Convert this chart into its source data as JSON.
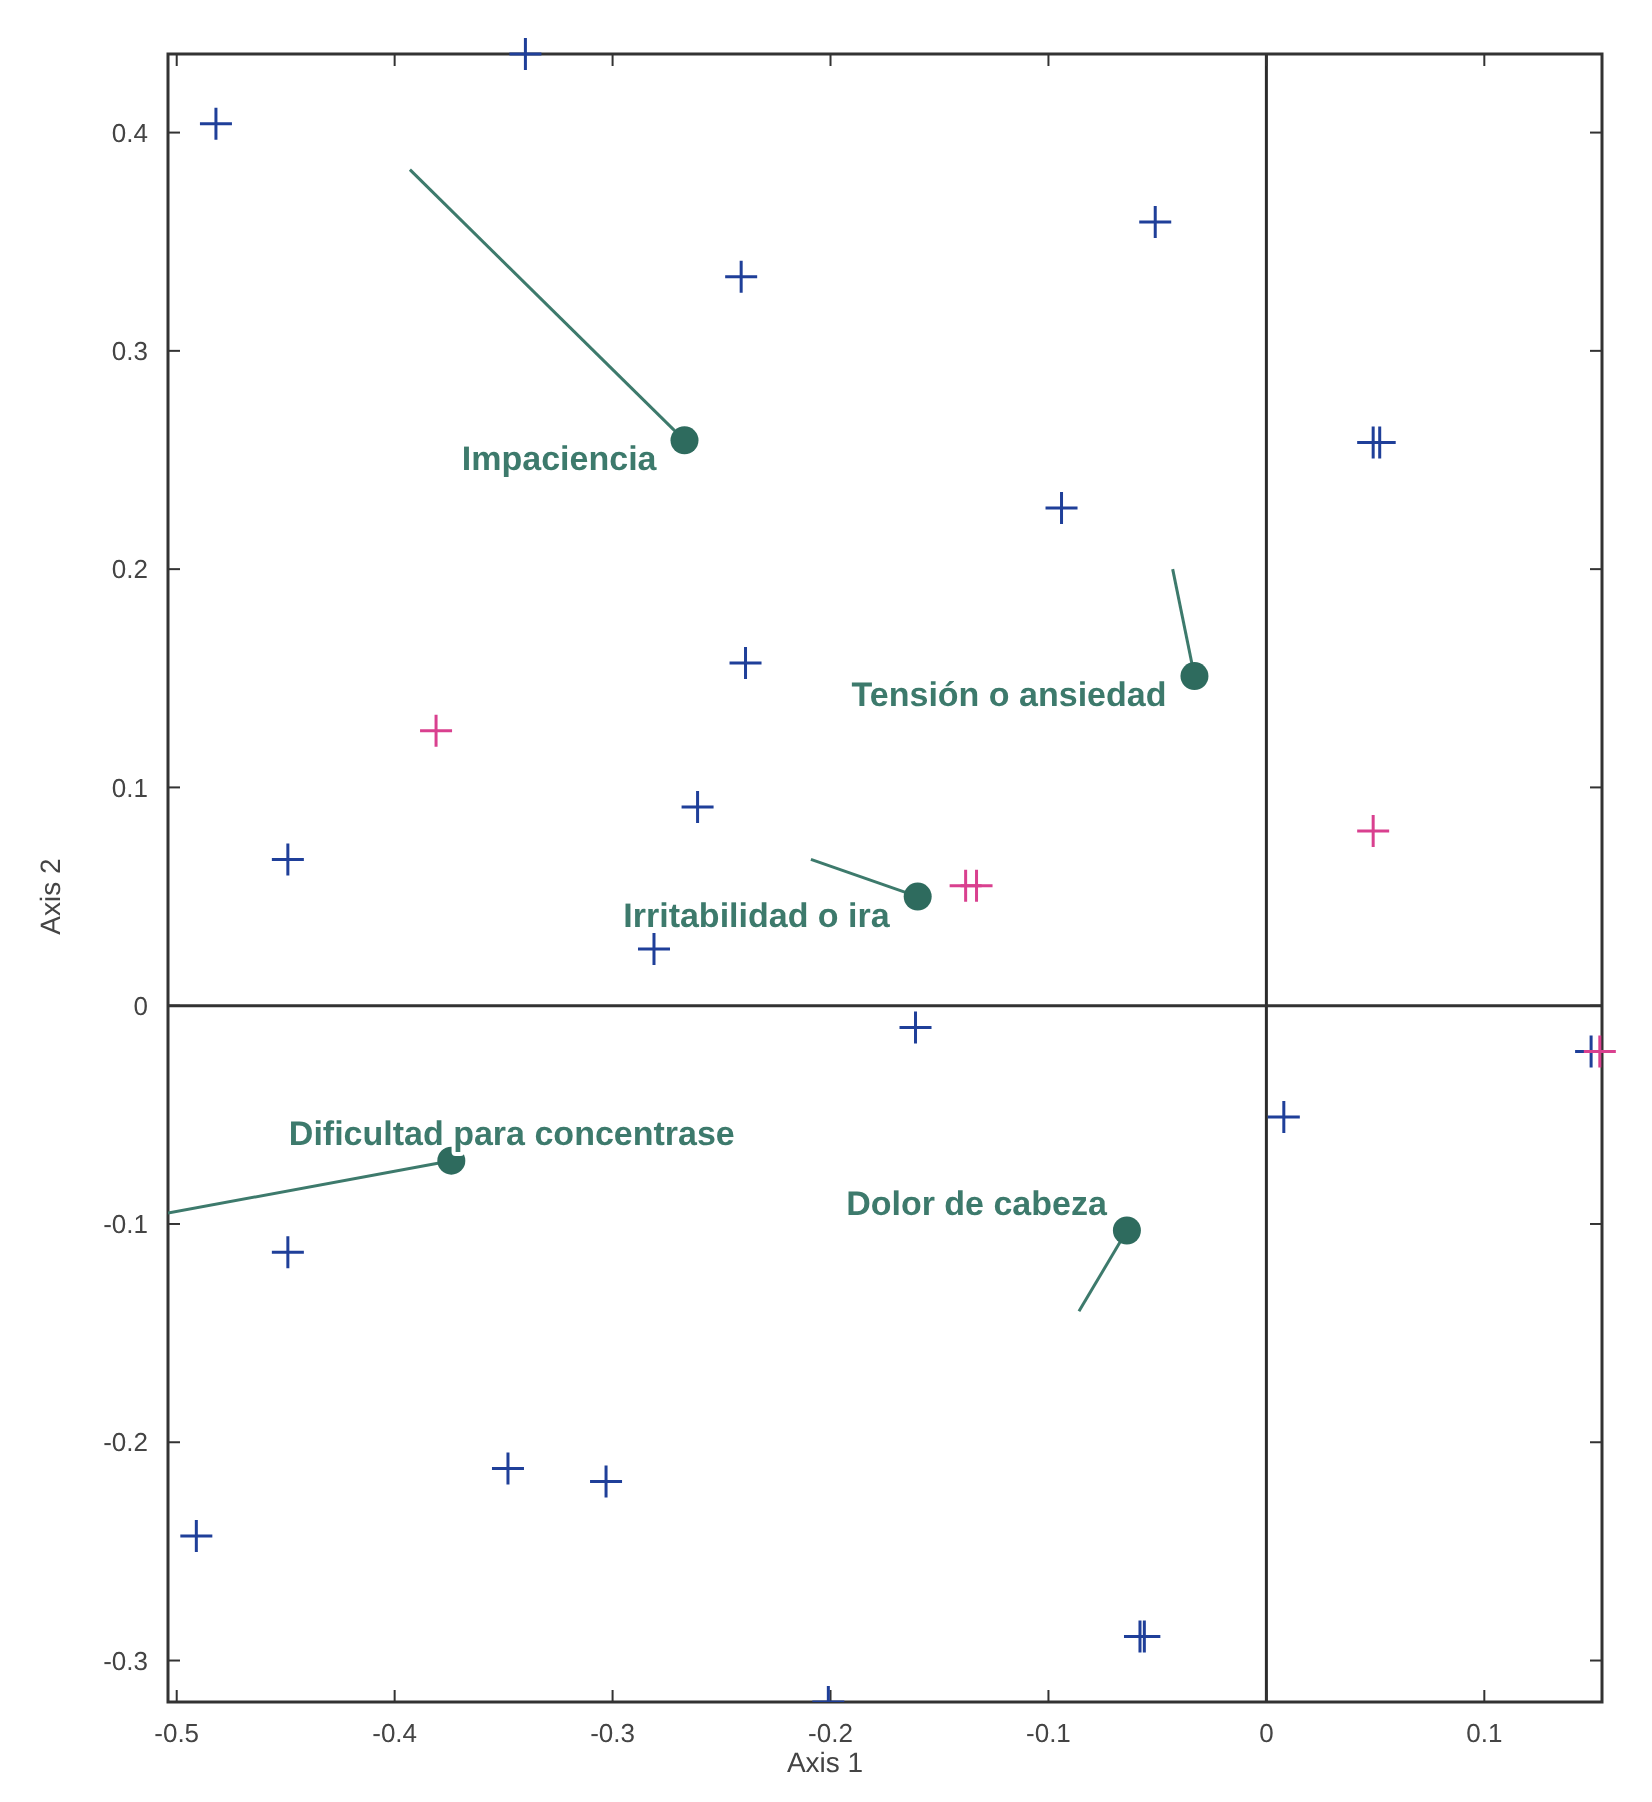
{
  "chart_data": {
    "type": "scatter",
    "xlabel": "Axis 1",
    "ylabel": "Axis 2",
    "xlim": [
      -0.504,
      0.154
    ],
    "ylim": [
      -0.319,
      0.436
    ],
    "xticks": [
      -0.5,
      -0.4,
      -0.3,
      -0.2,
      -0.1,
      0,
      0.1
    ],
    "yticks": [
      -0.3,
      -0.2,
      -0.1,
      0,
      0.1,
      0.2,
      0.3,
      0.4
    ],
    "grid": false,
    "ref_lines": [
      {
        "axis": "x",
        "value": 0,
        "color": "#2b2b2b"
      },
      {
        "axis": "y",
        "value": 0,
        "color": "#333333"
      }
    ],
    "series": [
      {
        "marker": "cross",
        "color": "#1f3f99",
        "x": [
          -0.482,
          -0.34,
          -0.241,
          -0.051,
          -0.094,
          0.049,
          0.052,
          -0.239,
          -0.261,
          -0.449,
          -0.281,
          -0.161,
          0.008,
          0.149,
          -0.449,
          -0.348,
          -0.303,
          -0.491,
          -0.201,
          -0.058,
          -0.056
        ],
        "values": [
          0.404,
          0.436,
          0.334,
          0.359,
          0.228,
          0.258,
          0.258,
          0.157,
          0.091,
          0.067,
          0.026,
          -0.01,
          -0.051,
          -0.021,
          -0.113,
          -0.212,
          -0.218,
          -0.243,
          -0.319,
          -0.289,
          -0.289
        ]
      },
      {
        "marker": "cross",
        "color": "#d9408f",
        "x": [
          -0.381,
          -0.138,
          -0.133,
          0.049,
          0.153
        ],
        "values": [
          0.126,
          0.055,
          0.055,
          0.08,
          -0.021
        ]
      },
      {
        "type": "line",
        "color": "#3d7a6c",
        "x": [
          -0.393,
          -0.267
        ],
        "values": [
          0.383,
          0.259
        ]
      },
      {
        "type": "line",
        "color": "#3d7a6c",
        "x": [
          -0.043,
          -0.033
        ],
        "values": [
          0.2,
          0.151
        ]
      },
      {
        "type": "line",
        "color": "#3d7a6c",
        "x": [
          -0.209,
          -0.16
        ],
        "values": [
          0.067,
          0.05
        ]
      },
      {
        "type": "line",
        "color": "#3d7a6c",
        "x": [
          -0.504,
          -0.374
        ],
        "values": [
          -0.095,
          -0.071
        ]
      },
      {
        "type": "line",
        "color": "#3d7a6c",
        "x": [
          -0.086,
          -0.064
        ],
        "values": [
          -0.14,
          -0.103
        ]
      },
      {
        "marker": "circle",
        "color": "#2e6b5e",
        "x": [
          -0.267,
          -0.033,
          -0.16,
          -0.374,
          -0.064
        ],
        "values": [
          0.259,
          0.151,
          0.05,
          -0.071,
          -0.103
        ]
      }
    ],
    "annotations": [
      {
        "text": "Impaciencia",
        "x": -0.267,
        "y": 0.259
      },
      {
        "text": "Tensión o ansiedad",
        "x": -0.033,
        "y": 0.151
      },
      {
        "text": "Irritabilidad o ira",
        "x": -0.16,
        "y": 0.05
      },
      {
        "text": "Dificultad para concentrase",
        "x": -0.374,
        "y": -0.071
      },
      {
        "text": "Dolor de cabeza",
        "x": -0.064,
        "y": -0.103
      }
    ]
  }
}
